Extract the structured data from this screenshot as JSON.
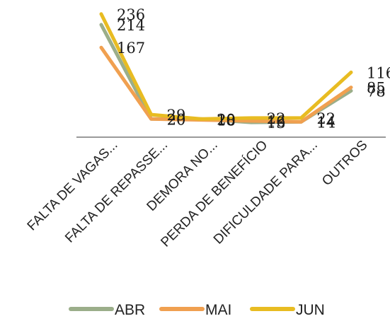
{
  "chart_data": {
    "type": "line",
    "categories": [
      "FALTA DE VAGAS...",
      "FALTA DE REPASSE...",
      "DEMORA NO...",
      "PERDA DE BENEFÍCIO",
      "DIFICULDADE PARA...",
      "OUTROS"
    ],
    "series": [
      {
        "name": "ABR",
        "color": "#9bae8a",
        "values": [
          214,
          20,
          20,
          13,
          14,
          78
        ]
      },
      {
        "name": "MAI",
        "color": "#f0a050",
        "values": [
          167,
          20,
          18,
          16,
          14,
          85
        ]
      },
      {
        "name": "JUN",
        "color": "#e8bc22",
        "values": [
          236,
          29,
          20,
          22,
          22,
          116
        ]
      }
    ],
    "ylim": [
      0,
      250
    ],
    "grid": false,
    "legend_position": "bottom",
    "data_labels": true,
    "xlabel": "",
    "ylabel": ""
  }
}
